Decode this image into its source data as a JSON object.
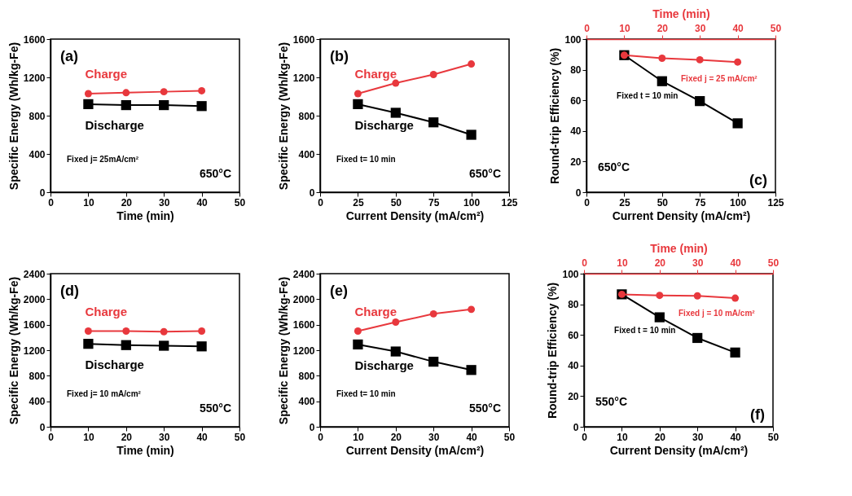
{
  "chart_data": [
    {
      "type": "line",
      "xlabel": "Time (min)",
      "ylabel": "Specific Energy (Wh/kg-Fe)",
      "x": [
        10,
        20,
        30,
        40
      ],
      "xlim": [
        0,
        50
      ],
      "xticks": [
        0,
        10,
        20,
        30,
        40,
        50
      ],
      "ylim": [
        0,
        1600
      ],
      "yticks": [
        0,
        400,
        800,
        1200,
        1600
      ],
      "series": [
        {
          "name": "Charge",
          "color": "#e8383d",
          "marker": "circle",
          "values": [
            1030,
            1040,
            1050,
            1060
          ]
        },
        {
          "name": "Discharge",
          "color": "#000000",
          "marker": "square",
          "values": [
            920,
            910,
            910,
            900
          ]
        }
      ],
      "annotations": [
        "(a)",
        "Fixed j= 25mA/cm²",
        "650°C"
      ]
    },
    {
      "type": "line",
      "xlabel": "Current Density (mA/cm²)",
      "ylabel": "Specific Energy (Wh/kg-Fe)",
      "x": [
        25,
        50,
        75,
        100
      ],
      "xlim": [
        0,
        125
      ],
      "xticks": [
        0,
        25,
        50,
        75,
        100,
        125
      ],
      "ylim": [
        0,
        1600
      ],
      "yticks": [
        0,
        400,
        800,
        1200,
        1600
      ],
      "series": [
        {
          "name": "Charge",
          "color": "#e8383d",
          "marker": "circle",
          "values": [
            1030,
            1140,
            1230,
            1340
          ]
        },
        {
          "name": "Discharge",
          "color": "#000000",
          "marker": "square",
          "values": [
            920,
            830,
            730,
            600
          ]
        }
      ],
      "annotations": [
        "(b)",
        "Fixed t= 10 min",
        "650°C"
      ]
    },
    {
      "type": "line",
      "xlabel": "Current Density (mA/cm²)",
      "x2label": "Time (min)",
      "ylabel": "Round-trip Efficiency (%)",
      "xlim": [
        0,
        125
      ],
      "xticks": [
        0,
        25,
        50,
        75,
        100,
        125
      ],
      "x2lim": [
        0,
        50
      ],
      "x2ticks": [
        0,
        10,
        20,
        30,
        40,
        50
      ],
      "ylim": [
        0,
        100
      ],
      "yticks": [
        0,
        20,
        40,
        60,
        80,
        100
      ],
      "series": [
        {
          "color": "#000000",
          "marker": "square",
          "x": [
            25,
            50,
            75,
            100
          ],
          "values": [
            89.5,
            72.5,
            59.5,
            45
          ]
        },
        {
          "color": "#e8383d",
          "marker": "circle",
          "axis": "x2",
          "x": [
            10,
            20,
            30,
            40
          ],
          "values": [
            89.5,
            87.5,
            86.5,
            85
          ]
        }
      ],
      "annotations": [
        "(c)",
        "650°C",
        "Fixed j = 25 mA/cm²",
        "Fixed t = 10 min"
      ]
    },
    {
      "type": "line",
      "xlabel": "Time (min)",
      "ylabel": "Specific Energy (Wh/kg-Fe)",
      "x": [
        10,
        20,
        30,
        40
      ],
      "xlim": [
        0,
        50
      ],
      "xticks": [
        0,
        10,
        20,
        30,
        40,
        50
      ],
      "ylim": [
        0,
        2400
      ],
      "yticks": [
        0,
        400,
        800,
        1200,
        1600,
        2000,
        2400
      ],
      "series": [
        {
          "name": "Charge",
          "color": "#e8383d",
          "marker": "circle",
          "values": [
            1500,
            1500,
            1490,
            1500
          ]
        },
        {
          "name": "Discharge",
          "color": "#000000",
          "marker": "square",
          "values": [
            1300,
            1280,
            1270,
            1260
          ]
        }
      ],
      "annotations": [
        "(d)",
        "Fixed j= 10 mA/cm²",
        "550°C"
      ]
    },
    {
      "type": "line",
      "xlabel": "Current Density (mA/cm²)",
      "ylabel": "Specific Energy (Wh/kg-Fe)",
      "x": [
        10,
        20,
        30,
        40
      ],
      "xlim": [
        0,
        50
      ],
      "xticks": [
        0,
        10,
        20,
        30,
        40,
        50
      ],
      "ylim": [
        0,
        2400
      ],
      "yticks": [
        0,
        400,
        800,
        1200,
        1600,
        2000,
        2400
      ],
      "series": [
        {
          "name": "Charge",
          "color": "#e8383d",
          "marker": "circle",
          "values": [
            1500,
            1640,
            1770,
            1840
          ]
        },
        {
          "name": "Discharge",
          "color": "#000000",
          "marker": "square",
          "values": [
            1290,
            1180,
            1020,
            890
          ]
        }
      ],
      "annotations": [
        "(e)",
        "Fixed t= 10 min",
        "550°C"
      ]
    },
    {
      "type": "line",
      "xlabel": "Current Density (mA/cm²)",
      "x2label": "Time (min)",
      "ylabel": "Round-trip Efficiency (%)",
      "xlim": [
        0,
        50
      ],
      "xticks": [
        0,
        10,
        20,
        30,
        40,
        50
      ],
      "x2lim": [
        0,
        50
      ],
      "x2ticks": [
        0,
        10,
        20,
        30,
        40,
        50
      ],
      "ylim": [
        0,
        100
      ],
      "yticks": [
        0,
        20,
        40,
        60,
        80,
        100
      ],
      "series": [
        {
          "color": "#000000",
          "marker": "square",
          "x": [
            10,
            20,
            30,
            40
          ],
          "values": [
            86.5,
            71.5,
            58,
            48.5
          ]
        },
        {
          "color": "#e8383d",
          "marker": "circle",
          "axis": "x2",
          "x": [
            10,
            20,
            30,
            40
          ],
          "values": [
            86.5,
            85.8,
            85.5,
            84
          ]
        }
      ],
      "annotations": [
        "(f)",
        "550°C",
        "Fixed j = 10 mA/cm²",
        "Fixed t = 10 min"
      ]
    }
  ]
}
